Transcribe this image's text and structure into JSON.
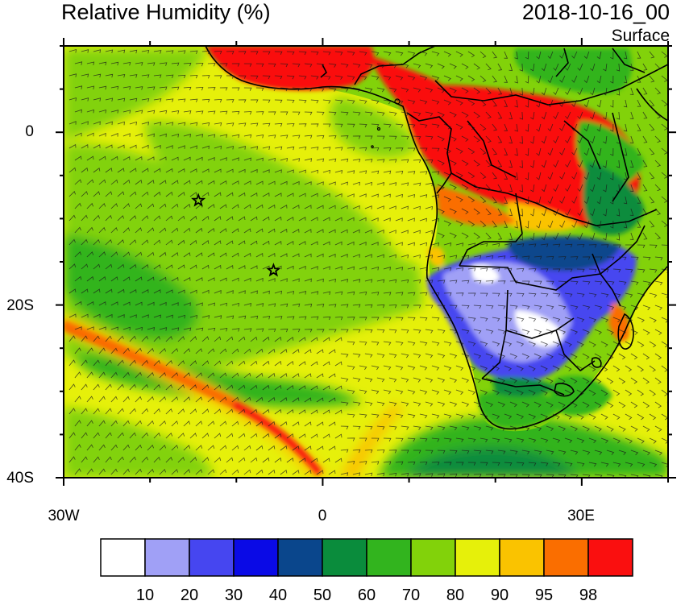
{
  "title": "Relative Humidity (%)",
  "valid_time": "2018-10-16_00",
  "level": "Surface",
  "map": {
    "lon_range": [
      -30,
      40
    ],
    "lat_range": [
      -40,
      10
    ],
    "lat_labels": [
      {
        "lat": 0,
        "text": "0"
      },
      {
        "lat": -20,
        "text": "20S"
      },
      {
        "lat": -40,
        "text": "40S"
      }
    ],
    "lon_labels": [
      {
        "lon": -30,
        "text": "30W"
      },
      {
        "lon": 0,
        "text": "0"
      },
      {
        "lon": 30,
        "text": "30E"
      }
    ],
    "markers": [
      {
        "type": "star",
        "lon": -14.4,
        "lat": -7.9
      },
      {
        "type": "star",
        "lon": -5.7,
        "lat": -16.0
      }
    ],
    "wind_barbs": true
  },
  "colorbar": {
    "levels": [
      "10",
      "20",
      "30",
      "40",
      "50",
      "60",
      "70",
      "80",
      "90",
      "95",
      "98"
    ],
    "colors": [
      "#ffffff",
      "#a0a0f6",
      "#4646f0",
      "#0a0ae6",
      "#0a468c",
      "#0a8c3c",
      "#32b41e",
      "#82d20a",
      "#e6f00a",
      "#fac300",
      "#fa6e00",
      "#fa0f0f"
    ]
  }
}
